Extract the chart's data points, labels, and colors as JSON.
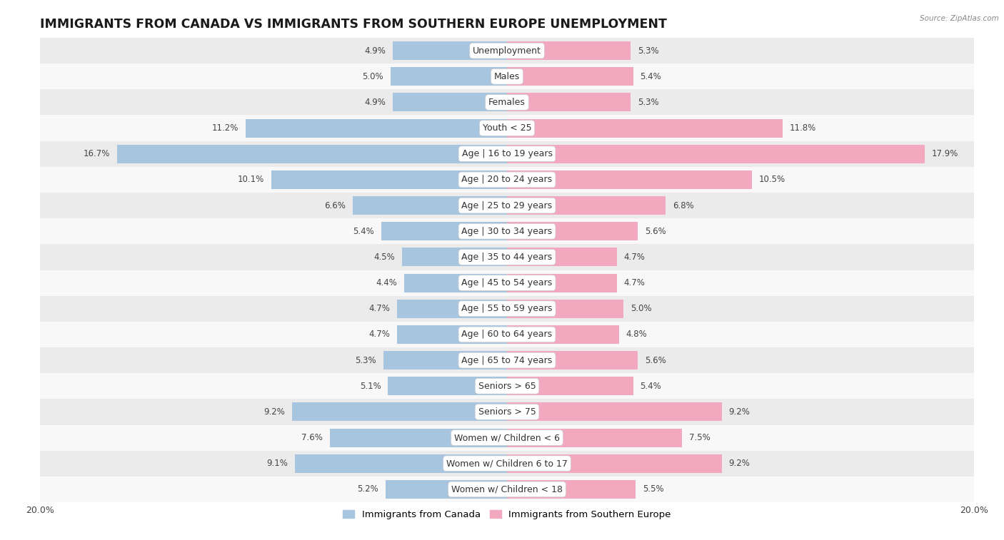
{
  "title": "IMMIGRANTS FROM CANADA VS IMMIGRANTS FROM SOUTHERN EUROPE UNEMPLOYMENT",
  "source": "Source: ZipAtlas.com",
  "categories": [
    "Unemployment",
    "Males",
    "Females",
    "Youth < 25",
    "Age | 16 to 19 years",
    "Age | 20 to 24 years",
    "Age | 25 to 29 years",
    "Age | 30 to 34 years",
    "Age | 35 to 44 years",
    "Age | 45 to 54 years",
    "Age | 55 to 59 years",
    "Age | 60 to 64 years",
    "Age | 65 to 74 years",
    "Seniors > 65",
    "Seniors > 75",
    "Women w/ Children < 6",
    "Women w/ Children 6 to 17",
    "Women w/ Children < 18"
  ],
  "canada_values": [
    4.9,
    5.0,
    4.9,
    11.2,
    16.7,
    10.1,
    6.6,
    5.4,
    4.5,
    4.4,
    4.7,
    4.7,
    5.3,
    5.1,
    9.2,
    7.6,
    9.1,
    5.2
  ],
  "southern_europe_values": [
    5.3,
    5.4,
    5.3,
    11.8,
    17.9,
    10.5,
    6.8,
    5.6,
    4.7,
    4.7,
    5.0,
    4.8,
    5.6,
    5.4,
    9.2,
    7.5,
    9.2,
    5.5
  ],
  "canada_color": "#a8c5e0",
  "southern_europe_color": "#f2a8be",
  "canada_label": "Immigrants from Canada",
  "southern_europe_label": "Immigrants from Southern Europe",
  "axis_limit": 20.0,
  "bg_color_odd": "#ebebeb",
  "bg_color_even": "#f8f8f8",
  "bar_height": 0.72,
  "title_fontsize": 12.5,
  "label_fontsize": 9,
  "value_fontsize": 8.5
}
